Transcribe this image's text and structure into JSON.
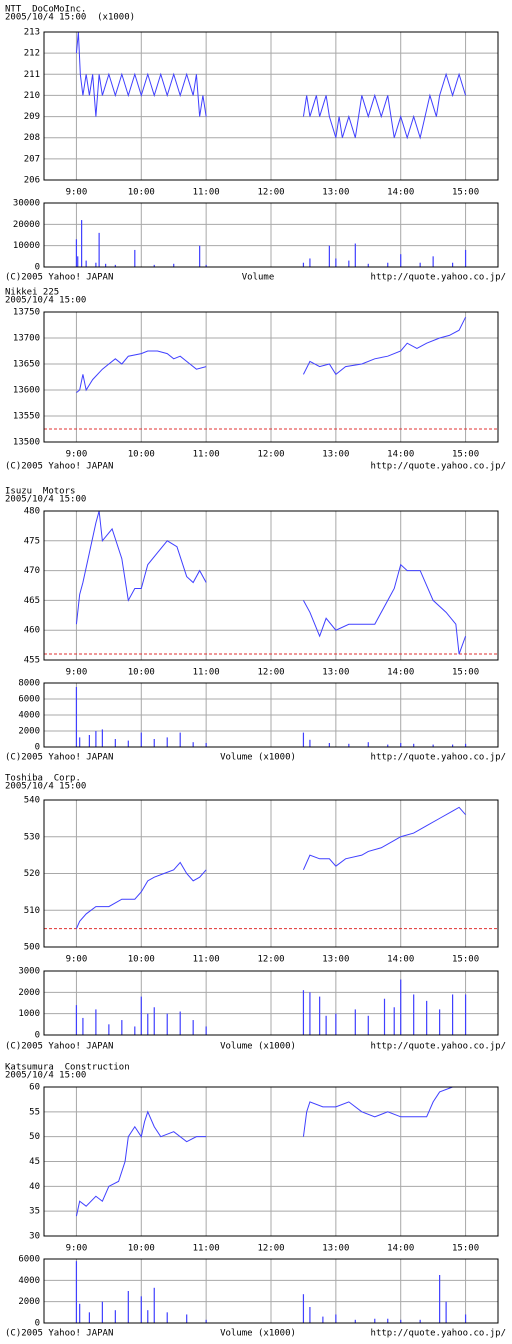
{
  "chart_data": [
    {
      "type": "line",
      "title": "NTT  DoCoMoInc.",
      "subtitle": "2005/10/4 15:00  (x1000)",
      "color": "#4040ff",
      "xlim": [
        8.5,
        15.5
      ],
      "xticks": [
        {
          "value": 9,
          "label": "9:00"
        },
        {
          "value": 10,
          "label": "10:00"
        },
        {
          "value": 11,
          "label": "11:00"
        },
        {
          "value": 12,
          "label": "12:00"
        },
        {
          "value": 13,
          "label": "13:00"
        },
        {
          "value": 14,
          "label": "14:00"
        },
        {
          "value": 15,
          "label": "15:00"
        }
      ],
      "ylim": [
        206,
        213
      ],
      "yticks": [
        206,
        207,
        208,
        209,
        210,
        211,
        212,
        213
      ],
      "reference_line": 206,
      "x": [
        9.0,
        9.03,
        9.06,
        9.1,
        9.15,
        9.2,
        9.25,
        9.3,
        9.35,
        9.4,
        9.5,
        9.6,
        9.7,
        9.8,
        9.9,
        10.0,
        10.1,
        10.2,
        10.3,
        10.4,
        10.5,
        10.6,
        10.7,
        10.8,
        10.85,
        10.9,
        10.95,
        11.0,
        12.0,
        12.5,
        12.55,
        12.6,
        12.7,
        12.75,
        12.85,
        12.9,
        13.0,
        13.05,
        13.1,
        13.2,
        13.3,
        13.4,
        13.5,
        13.6,
        13.7,
        13.8,
        13.9,
        14.0,
        14.1,
        14.2,
        14.3,
        14.45,
        14.55,
        14.6,
        14.7,
        14.8,
        14.9,
        15.0
      ],
      "values": [
        212,
        213,
        211,
        210,
        211,
        210,
        211,
        209,
        211,
        210,
        211,
        210,
        211,
        210,
        211,
        210,
        211,
        210,
        211,
        210,
        211,
        210,
        211,
        210,
        211,
        209,
        210,
        209,
        null,
        209,
        210,
        209,
        210,
        209,
        210,
        209,
        208,
        209,
        208,
        209,
        208,
        210,
        209,
        210,
        209,
        210,
        208,
        209,
        208,
        209,
        208,
        210,
        209,
        210,
        211,
        210,
        211,
        210
      ]
    },
    {
      "type": "bar",
      "color": "#4040ff",
      "xlim": [
        8.5,
        15.5
      ],
      "ylim": [
        0,
        30000
      ],
      "yticks": [
        0,
        10000,
        20000,
        30000
      ],
      "annotations": [
        "(C)2005 Yahoo! JAPAN",
        "Volume",
        "http://quote.yahoo.co.jp/"
      ],
      "x": [
        9.0,
        9.02,
        9.08,
        9.15,
        9.3,
        9.35,
        9.45,
        9.6,
        9.9,
        10.2,
        10.5,
        10.9,
        11.0,
        12.5,
        12.6,
        12.9,
        13.0,
        13.2,
        13.3,
        13.5,
        13.8,
        14.0,
        14.3,
        14.5,
        14.8,
        15.0
      ],
      "values": [
        13000,
        5000,
        22000,
        3000,
        2000,
        16000,
        1500,
        1000,
        8000,
        1000,
        1500,
        10000,
        1000,
        2000,
        4000,
        10000,
        4000,
        3000,
        11000,
        1500,
        2000,
        6000,
        2000,
        5000,
        2000,
        8000
      ]
    },
    {
      "type": "line",
      "title": "Nikkei 225",
      "subtitle": "2005/10/4 15:00",
      "color": "#4040ff",
      "annotations": [
        "(C)2005 Yahoo! JAPAN",
        "http://quote.yahoo.co.jp/"
      ],
      "xlim": [
        8.5,
        15.5
      ],
      "xticks": [
        {
          "value": 9,
          "label": "9:00"
        },
        {
          "value": 10,
          "label": "10:00"
        },
        {
          "value": 11,
          "label": "11:00"
        },
        {
          "value": 12,
          "label": "12:00"
        },
        {
          "value": 13,
          "label": "13:00"
        },
        {
          "value": 14,
          "label": "14:00"
        },
        {
          "value": 15,
          "label": "15:00"
        }
      ],
      "ylim": [
        13500,
        13750
      ],
      "yticks": [
        13500,
        13550,
        13600,
        13650,
        13700,
        13750
      ],
      "reference_line": 13525,
      "x": [
        9.0,
        9.05,
        9.1,
        9.15,
        9.25,
        9.4,
        9.5,
        9.6,
        9.7,
        9.8,
        10.0,
        10.1,
        10.25,
        10.4,
        10.5,
        10.6,
        10.75,
        10.85,
        11.0,
        12.0,
        12.5,
        12.6,
        12.75,
        12.9,
        13.0,
        13.15,
        13.4,
        13.6,
        13.8,
        14.0,
        14.1,
        14.25,
        14.4,
        14.6,
        14.75,
        14.9,
        15.0
      ],
      "values": [
        13595,
        13600,
        13630,
        13600,
        13620,
        13640,
        13650,
        13660,
        13650,
        13665,
        13670,
        13675,
        13675,
        13670,
        13660,
        13665,
        13650,
        13640,
        13645,
        null,
        13630,
        13655,
        13645,
        13650,
        13630,
        13645,
        13650,
        13660,
        13665,
        13675,
        13690,
        13680,
        13690,
        13700,
        13705,
        13715,
        13740
      ]
    },
    {
      "type": "line",
      "title": "Isuzu  Motors",
      "subtitle": "2005/10/4 15:00",
      "color": "#4040ff",
      "xlim": [
        8.5,
        15.5
      ],
      "xticks": [
        {
          "value": 9,
          "label": "9:00"
        },
        {
          "value": 10,
          "label": "10:00"
        },
        {
          "value": 11,
          "label": "11:00"
        },
        {
          "value": 12,
          "label": "12:00"
        },
        {
          "value": 13,
          "label": "13:00"
        },
        {
          "value": 14,
          "label": "14:00"
        },
        {
          "value": 15,
          "label": "15:00"
        }
      ],
      "ylim": [
        455,
        480
      ],
      "yticks": [
        455,
        460,
        465,
        470,
        475,
        480
      ],
      "reference_line": 456,
      "x": [
        9.0,
        9.05,
        9.1,
        9.2,
        9.3,
        9.35,
        9.4,
        9.55,
        9.7,
        9.8,
        9.9,
        10.0,
        10.1,
        10.25,
        10.4,
        10.55,
        10.7,
        10.8,
        10.9,
        11.0,
        12.0,
        12.5,
        12.6,
        12.75,
        12.85,
        13.0,
        13.2,
        13.4,
        13.6,
        13.75,
        13.9,
        14.0,
        14.1,
        14.3,
        14.5,
        14.7,
        14.85,
        14.9,
        15.0
      ],
      "values": [
        461,
        466,
        468,
        473,
        478,
        480,
        475,
        477,
        472,
        465,
        467,
        467,
        471,
        473,
        475,
        474,
        469,
        468,
        470,
        468,
        null,
        465,
        463,
        459,
        462,
        460,
        461,
        461,
        461,
        464,
        467,
        471,
        470,
        470,
        465,
        463,
        461,
        456,
        459
      ]
    },
    {
      "type": "bar",
      "color": "#4040ff",
      "xlim": [
        8.5,
        15.5
      ],
      "ylim": [
        0,
        8000
      ],
      "yticks": [
        0,
        2000,
        4000,
        6000,
        8000
      ],
      "annotations": [
        "(C)2005 Yahoo! JAPAN",
        "Volume (x1000)",
        "http://quote.yahoo.co.jp/"
      ],
      "x": [
        9.0,
        9.05,
        9.2,
        9.3,
        9.4,
        9.6,
        9.8,
        10.0,
        10.2,
        10.4,
        10.6,
        10.8,
        11.0,
        12.5,
        12.6,
        12.9,
        13.2,
        13.5,
        13.8,
        14.0,
        14.2,
        14.5,
        14.8,
        15.0
      ],
      "values": [
        7500,
        1200,
        1500,
        2000,
        2200,
        1000,
        800,
        1800,
        1000,
        1200,
        1800,
        600,
        500,
        1800,
        900,
        500,
        400,
        600,
        300,
        500,
        400,
        300,
        300,
        400
      ]
    },
    {
      "type": "line",
      "title": "Toshiba  Corp.",
      "subtitle": "2005/10/4 15:00",
      "color": "#4040ff",
      "xlim": [
        8.5,
        15.5
      ],
      "xticks": [
        {
          "value": 9,
          "label": "9:00"
        },
        {
          "value": 10,
          "label": "10:00"
        },
        {
          "value": 11,
          "label": "11:00"
        },
        {
          "value": 12,
          "label": "12:00"
        },
        {
          "value": 13,
          "label": "13:00"
        },
        {
          "value": 14,
          "label": "14:00"
        },
        {
          "value": 15,
          "label": "15:00"
        }
      ],
      "ylim": [
        500,
        540
      ],
      "yticks": [
        500,
        510,
        520,
        530,
        540
      ],
      "reference_line": 505,
      "x": [
        9.0,
        9.05,
        9.15,
        9.3,
        9.5,
        9.7,
        9.9,
        10.0,
        10.1,
        10.2,
        10.35,
        10.5,
        10.6,
        10.7,
        10.8,
        10.9,
        11.0,
        12.0,
        12.5,
        12.6,
        12.75,
        12.9,
        13.0,
        13.15,
        13.4,
        13.5,
        13.7,
        13.9,
        14.0,
        14.2,
        14.4,
        14.6,
        14.8,
        14.9,
        15.0
      ],
      "values": [
        505,
        507,
        509,
        511,
        511,
        513,
        513,
        515,
        518,
        519,
        520,
        521,
        523,
        520,
        518,
        519,
        521,
        null,
        521,
        525,
        524,
        524,
        522,
        524,
        525,
        526,
        527,
        529,
        530,
        531,
        533,
        535,
        537,
        538,
        536
      ]
    },
    {
      "type": "bar",
      "color": "#4040ff",
      "xlim": [
        8.5,
        15.5
      ],
      "ylim": [
        0,
        3000
      ],
      "yticks": [
        0,
        1000,
        2000,
        3000
      ],
      "annotations": [
        "(C)2005 Yahoo! JAPAN",
        "Volume (x1000)",
        "http://quote.yahoo.co.jp/"
      ],
      "x": [
        9.0,
        9.1,
        9.3,
        9.5,
        9.7,
        9.9,
        10.0,
        10.1,
        10.2,
        10.4,
        10.6,
        10.8,
        11.0,
        12.5,
        12.6,
        12.75,
        12.85,
        13.0,
        13.3,
        13.5,
        13.75,
        13.9,
        14.0,
        14.2,
        14.4,
        14.6,
        14.8,
        15.0
      ],
      "values": [
        1400,
        800,
        1200,
        500,
        700,
        400,
        1800,
        1000,
        1300,
        1000,
        1100,
        700,
        400,
        2100,
        2000,
        1800,
        900,
        1000,
        1200,
        900,
        1700,
        1300,
        2600,
        1900,
        1600,
        1200,
        1900,
        1900
      ]
    },
    {
      "type": "line",
      "title": "Katsumura  Construction",
      "subtitle": "2005/10/4 15:00",
      "color": "#4040ff",
      "xlim": [
        8.5,
        15.5
      ],
      "xticks": [
        {
          "value": 9,
          "label": "9:00"
        },
        {
          "value": 10,
          "label": "10:00"
        },
        {
          "value": 11,
          "label": "11:00"
        },
        {
          "value": 12,
          "label": "12:00"
        },
        {
          "value": 13,
          "label": "13:00"
        },
        {
          "value": 14,
          "label": "14:00"
        },
        {
          "value": 15,
          "label": "15:00"
        }
      ],
      "ylim": [
        30,
        60
      ],
      "yticks": [
        30,
        35,
        40,
        45,
        50,
        55,
        60
      ],
      "reference_line": 30,
      "x": [
        9.0,
        9.05,
        9.15,
        9.3,
        9.4,
        9.5,
        9.65,
        9.75,
        9.8,
        9.9,
        10.0,
        10.05,
        10.1,
        10.2,
        10.3,
        10.5,
        10.7,
        10.85,
        11.0,
        12.0,
        12.5,
        12.55,
        12.6,
        12.8,
        13.0,
        13.2,
        13.4,
        13.6,
        13.8,
        14.0,
        14.4,
        14.5,
        14.6,
        14.8,
        15.0
      ],
      "values": [
        34,
        37,
        36,
        38,
        37,
        40,
        41,
        45,
        50,
        52,
        50,
        53,
        55,
        52,
        50,
        51,
        49,
        50,
        50,
        null,
        50,
        55,
        57,
        56,
        56,
        57,
        55,
        54,
        55,
        54,
        54,
        57,
        59,
        60,
        60
      ]
    },
    {
      "type": "bar",
      "color": "#4040ff",
      "xlim": [
        8.5,
        15.5
      ],
      "ylim": [
        0,
        6000
      ],
      "yticks": [
        0,
        2000,
        4000,
        6000
      ],
      "annotations": [
        "(C)2005 Yahoo! JAPAN",
        "Volume (x1000)",
        "http://quote.yahoo.co.jp/"
      ],
      "x": [
        9.0,
        9.05,
        9.2,
        9.4,
        9.6,
        9.8,
        10.0,
        10.1,
        10.2,
        10.4,
        10.7,
        11.0,
        12.5,
        12.6,
        12.8,
        13.0,
        13.3,
        13.6,
        13.8,
        14.0,
        14.3,
        14.6,
        14.7,
        15.0
      ],
      "values": [
        5800,
        1800,
        1000,
        2000,
        1200,
        3000,
        2500,
        1200,
        3300,
        1000,
        800,
        300,
        2700,
        1500,
        600,
        800,
        300,
        400,
        400,
        300,
        300,
        4500,
        2000,
        800
      ]
    }
  ]
}
